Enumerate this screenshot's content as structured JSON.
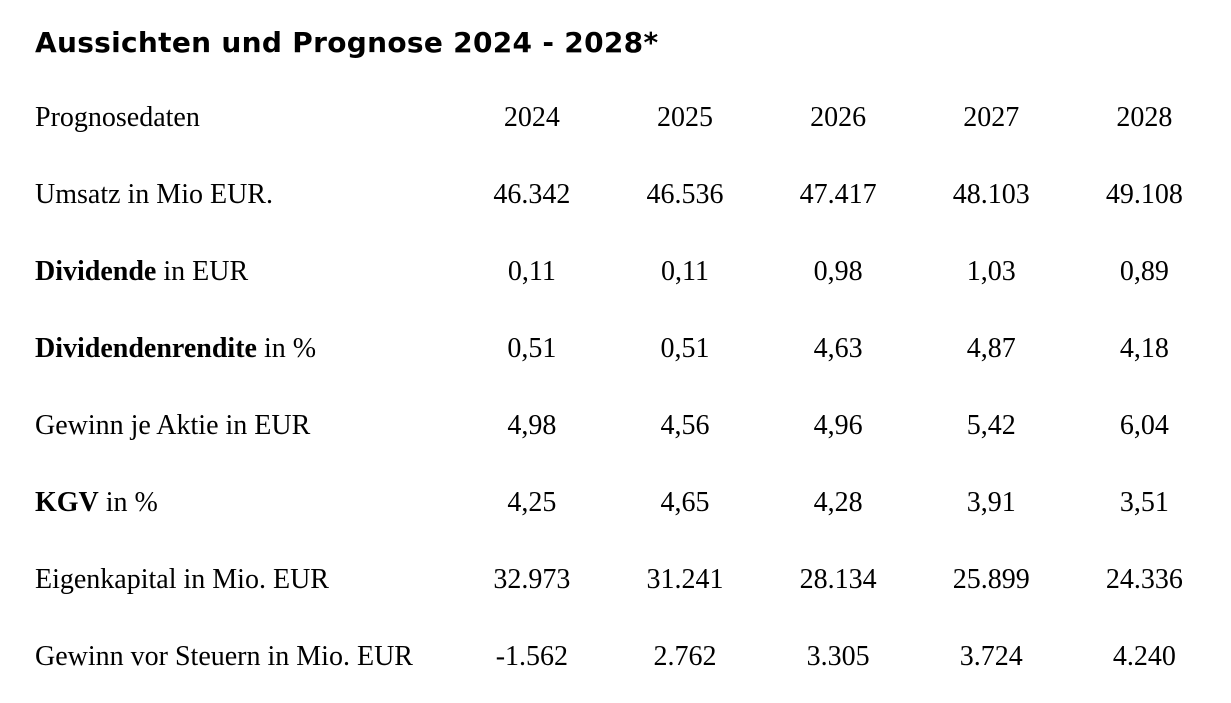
{
  "page": {
    "title": "Aussichten und Prognose 2024 - 2028*",
    "background_color": "#ffffff",
    "text_color": "#000000"
  },
  "table": {
    "header": {
      "label": "Prognosedaten",
      "years": [
        "2024",
        "2025",
        "2026",
        "2027",
        "2028"
      ]
    },
    "rows": [
      {
        "label_bold": "",
        "label_rest": "Umsatz in Mio EUR.",
        "values": [
          "46.342",
          "46.536",
          "47.417",
          "48.103",
          "49.108"
        ]
      },
      {
        "label_bold": "Dividende",
        "label_rest": " in EUR",
        "values": [
          "0,11",
          "0,11",
          "0,98",
          "1,03",
          "0,89"
        ]
      },
      {
        "label_bold": "Dividendenrendite",
        "label_rest": " in %",
        "values": [
          "0,51",
          "0,51",
          "4,63",
          "4,87",
          "4,18"
        ]
      },
      {
        "label_bold": "",
        "label_rest": "Gewinn je Aktie in EUR",
        "values": [
          "4,98",
          "4,56",
          "4,96",
          "5,42",
          "6,04"
        ]
      },
      {
        "label_bold": "KGV",
        "label_rest": " in %",
        "values": [
          "4,25",
          "4,65",
          "4,28",
          "3,91",
          "3,51"
        ]
      },
      {
        "label_bold": "",
        "label_rest": "Eigenkapital in Mio. EUR",
        "values": [
          "32.973",
          "31.241",
          "28.134",
          "25.899",
          "24.336"
        ]
      },
      {
        "label_bold": "",
        "label_rest": "Gewinn vor Steuern in Mio. EUR",
        "values": [
          "-1.562",
          "2.762",
          "3.305",
          "3.724",
          "4.240"
        ]
      }
    ]
  },
  "chart_data": {
    "type": "table",
    "title": "Aussichten und Prognose 2024 - 2028*",
    "columns": [
      "Prognosedaten",
      "2024",
      "2025",
      "2026",
      "2027",
      "2028"
    ],
    "x": [
      2024,
      2025,
      2026,
      2027,
      2028
    ],
    "series": [
      {
        "name": "Umsatz in Mio EUR.",
        "values": [
          46342,
          46536,
          47417,
          48103,
          49108
        ]
      },
      {
        "name": "Dividende in EUR",
        "values": [
          0.11,
          0.11,
          0.98,
          1.03,
          0.89
        ]
      },
      {
        "name": "Dividendenrendite in %",
        "values": [
          0.51,
          0.51,
          4.63,
          4.87,
          4.18
        ]
      },
      {
        "name": "Gewinn je Aktie in EUR",
        "values": [
          4.98,
          4.56,
          4.96,
          5.42,
          6.04
        ]
      },
      {
        "name": "KGV in %",
        "values": [
          4.25,
          4.65,
          4.28,
          3.91,
          3.51
        ]
      },
      {
        "name": "Eigenkapital in Mio. EUR",
        "values": [
          32973,
          31241,
          28134,
          25899,
          24336
        ]
      },
      {
        "name": "Gewinn vor Steuern in Mio. EUR",
        "values": [
          -1562,
          2762,
          3305,
          3724,
          4240
        ]
      }
    ],
    "number_format": "de-DE",
    "grid": false,
    "legend": "none"
  }
}
